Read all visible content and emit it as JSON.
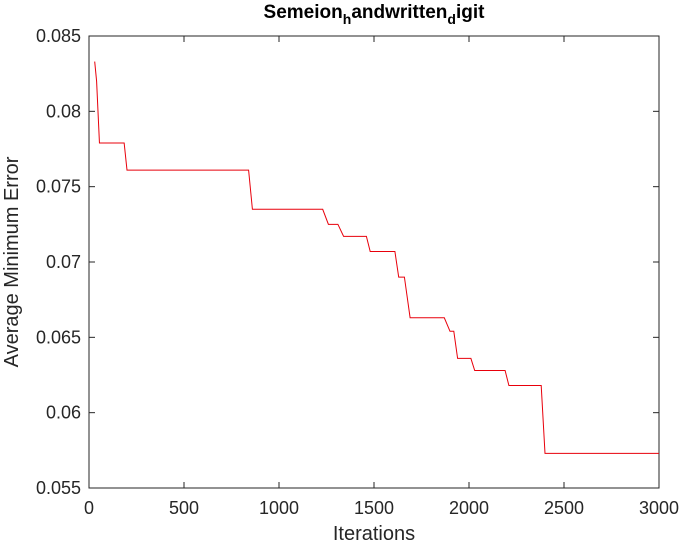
{
  "chart_data": {
    "type": "line",
    "title_parts": [
      {
        "text": "Semeion",
        "sub": false
      },
      {
        "text": "h",
        "sub": true
      },
      {
        "text": "andwritten",
        "sub": false
      },
      {
        "text": "d",
        "sub": true
      },
      {
        "text": "igit",
        "sub": false
      }
    ],
    "xlabel": "Iterations",
    "ylabel": "Average Minimum Error",
    "xlim": [
      0,
      3000
    ],
    "ylim": [
      0.055,
      0.085
    ],
    "x_ticks": [
      0,
      500,
      1000,
      1500,
      2000,
      2500,
      3000
    ],
    "y_ticks": [
      0.055,
      0.06,
      0.065,
      0.07,
      0.075,
      0.08,
      0.085
    ],
    "x_tick_labels": [
      "0",
      "500",
      "1000",
      "1500",
      "2000",
      "2500",
      "3000"
    ],
    "y_tick_labels": [
      "0.055",
      "0.06",
      "0.065",
      "0.07",
      "0.075",
      "0.08",
      "0.085"
    ],
    "grid": false,
    "box": true,
    "series": [
      {
        "color": "#e8000b",
        "x": [
          30,
          40,
          55,
          185,
          200,
          840,
          860,
          1230,
          1260,
          1310,
          1340,
          1460,
          1480,
          1610,
          1630,
          1660,
          1690,
          1710,
          1870,
          1900,
          1920,
          1940,
          2010,
          2030,
          2190,
          2210,
          2380,
          2400,
          3000
        ],
        "y": [
          0.0833,
          0.082,
          0.0779,
          0.0779,
          0.0761,
          0.0761,
          0.0735,
          0.0735,
          0.0725,
          0.0725,
          0.0717,
          0.0717,
          0.0707,
          0.0707,
          0.069,
          0.069,
          0.0663,
          0.0663,
          0.0663,
          0.0654,
          0.0654,
          0.0636,
          0.0636,
          0.0628,
          0.0628,
          0.0618,
          0.0618,
          0.0573,
          0.0573
        ]
      }
    ]
  }
}
